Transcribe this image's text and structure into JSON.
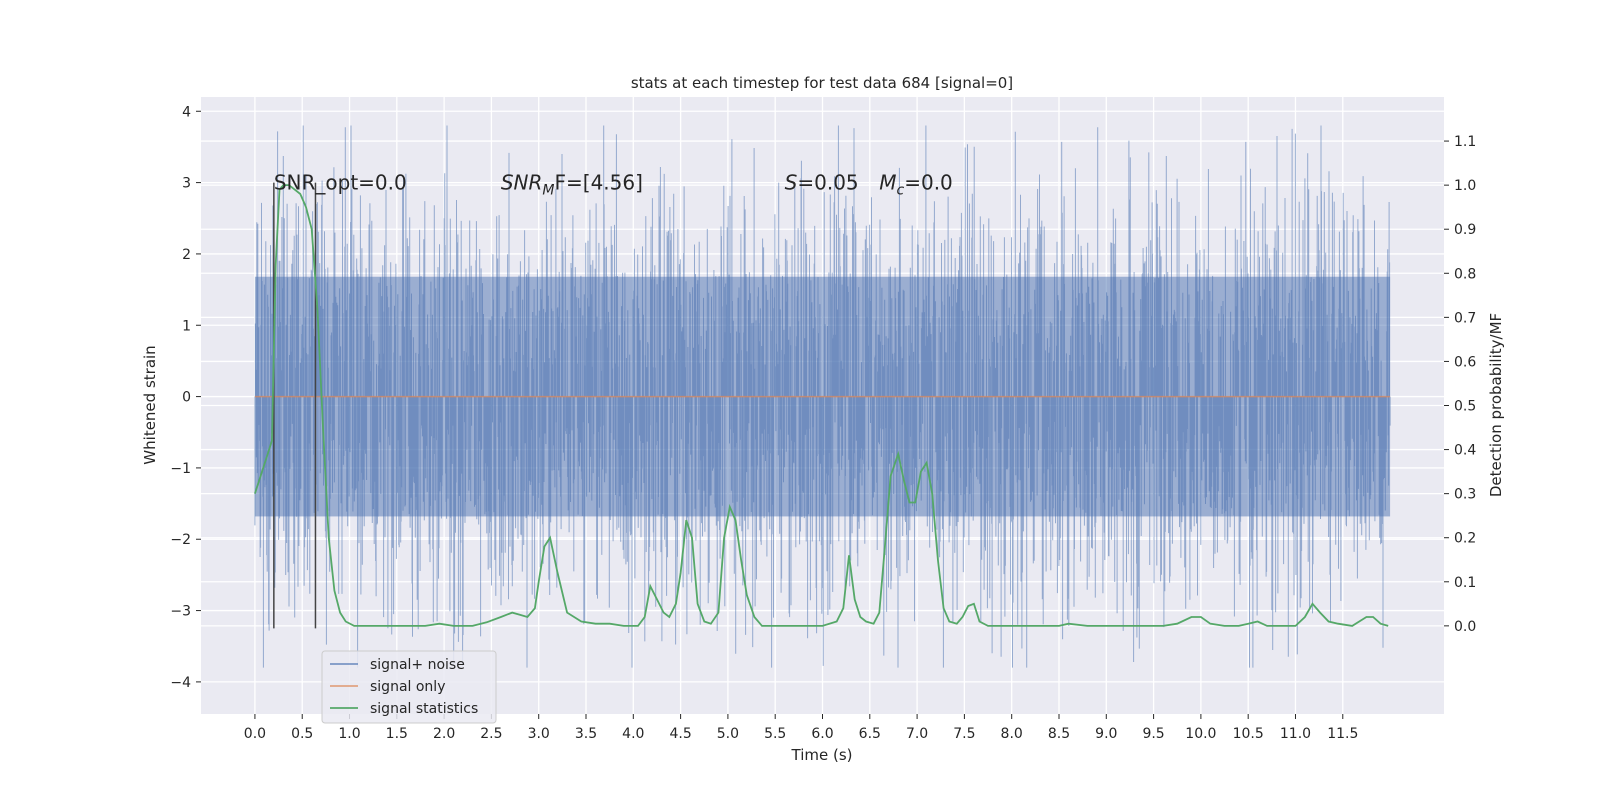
{
  "chart_data": {
    "type": "line",
    "title": "stats at each timestep for test data 684 [signal=0]",
    "xlabel": "Time (s)",
    "ylabel": "Whitened strain",
    "ylabel_right": "Detection probability/MF",
    "xlim": [
      -0.57,
      12.57
    ],
    "ylim": [
      -4.45,
      4.2
    ],
    "ylim_right": [
      -0.2,
      1.2
    ],
    "x_ticks": [
      0.0,
      0.5,
      1.0,
      1.5,
      2.0,
      2.5,
      3.0,
      3.5,
      4.0,
      4.5,
      5.0,
      5.5,
      6.0,
      6.5,
      7.0,
      7.5,
      8.0,
      8.5,
      9.0,
      9.5,
      10.0,
      10.5,
      11.0,
      11.5
    ],
    "x_tick_labels": [
      "0.0",
      "0.5",
      "1.0",
      "1.5",
      "2.0",
      "2.5",
      "3.0",
      "3.5",
      "4.0",
      "4.5",
      "5.0",
      "5.5",
      "6.0",
      "6.5",
      "7.0",
      "7.5",
      "8.0",
      "8.5",
      "9.0",
      "9.5",
      "10.0",
      "10.5",
      "11.0",
      "11.5"
    ],
    "y_ticks": [
      -4,
      -3,
      -2,
      -1,
      0,
      1,
      2,
      3,
      4
    ],
    "y_tick_labels": [
      "−4",
      "−3",
      "−2",
      "−1",
      "0",
      "1",
      "2",
      "3",
      "4"
    ],
    "y_right_ticks": [
      0.0,
      0.1,
      0.2,
      0.3,
      0.4,
      0.5,
      0.6,
      0.7,
      0.8,
      0.9,
      1.0,
      1.1
    ],
    "y_right_tick_labels": [
      "0.0",
      "0.1",
      "0.2",
      "0.3",
      "0.4",
      "0.5",
      "0.6",
      "0.7",
      "0.8",
      "0.9",
      "1.0",
      "1.1"
    ],
    "grid": true,
    "legend_position": "lower-left",
    "series": [
      {
        "name": "signal+ noise",
        "color": "#4c72b0",
        "kind": "noise-band",
        "x_range": [
          0.0,
          12.0
        ],
        "typical_amplitude": 1.5,
        "max_amplitude": 3.8
      },
      {
        "name": "signal only",
        "color": "#dd8452",
        "x": [
          0.0,
          12.0
        ],
        "y": [
          0.0,
          0.0
        ]
      },
      {
        "name": "signal statistics",
        "color": "#55a868",
        "axis": "right",
        "x": [
          0.0,
          0.06,
          0.12,
          0.18,
          0.22,
          0.26,
          0.3,
          0.36,
          0.42,
          0.48,
          0.54,
          0.6,
          0.66,
          0.72,
          0.78,
          0.84,
          0.9,
          0.96,
          1.05,
          1.2,
          1.4,
          1.6,
          1.8,
          1.95,
          2.1,
          2.3,
          2.45,
          2.6,
          2.72,
          2.8,
          2.88,
          2.96,
          3.0,
          3.06,
          3.12,
          3.2,
          3.3,
          3.45,
          3.6,
          3.75,
          3.9,
          4.05,
          4.12,
          4.18,
          4.25,
          4.32,
          4.38,
          4.45,
          4.5,
          4.56,
          4.62,
          4.68,
          4.75,
          4.82,
          4.9,
          4.96,
          5.02,
          5.08,
          5.14,
          5.2,
          5.28,
          5.36,
          5.45,
          5.6,
          5.8,
          6.0,
          6.15,
          6.22,
          6.28,
          6.34,
          6.4,
          6.46,
          6.54,
          6.6,
          6.66,
          6.72,
          6.8,
          6.86,
          6.92,
          6.98,
          7.04,
          7.1,
          7.16,
          7.22,
          7.28,
          7.34,
          7.42,
          7.48,
          7.54,
          7.6,
          7.66,
          7.75,
          7.9,
          8.1,
          8.3,
          8.5,
          8.6,
          8.8,
          9.0,
          9.2,
          9.4,
          9.6,
          9.75,
          9.9,
          10.0,
          10.1,
          10.25,
          10.4,
          10.5,
          10.6,
          10.7,
          10.85,
          11.0,
          11.1,
          11.18,
          11.26,
          11.35,
          11.45,
          11.6,
          11.75,
          11.82,
          11.9,
          11.98
        ],
        "y": [
          0.3,
          0.34,
          0.38,
          0.42,
          0.82,
          0.99,
          1.0,
          1.0,
          0.99,
          0.98,
          0.95,
          0.9,
          0.72,
          0.45,
          0.2,
          0.08,
          0.03,
          0.01,
          0.0,
          0.0,
          0.0,
          0.0,
          0.0,
          0.005,
          0.0,
          0.0,
          0.008,
          0.02,
          0.03,
          0.025,
          0.02,
          0.04,
          0.1,
          0.18,
          0.2,
          0.12,
          0.03,
          0.01,
          0.005,
          0.005,
          0.0,
          0.0,
          0.02,
          0.09,
          0.06,
          0.03,
          0.02,
          0.05,
          0.12,
          0.24,
          0.2,
          0.05,
          0.01,
          0.005,
          0.03,
          0.2,
          0.27,
          0.24,
          0.15,
          0.07,
          0.02,
          0.0,
          0.0,
          0.0,
          0.0,
          0.0,
          0.01,
          0.04,
          0.16,
          0.06,
          0.02,
          0.01,
          0.005,
          0.03,
          0.18,
          0.34,
          0.39,
          0.33,
          0.28,
          0.28,
          0.35,
          0.37,
          0.3,
          0.15,
          0.04,
          0.01,
          0.005,
          0.02,
          0.045,
          0.05,
          0.01,
          0.0,
          0.0,
          0.0,
          0.0,
          0.0,
          0.005,
          0.0,
          0.0,
          0.0,
          0.0,
          0.0,
          0.005,
          0.02,
          0.02,
          0.005,
          0.0,
          0.0,
          0.005,
          0.01,
          0.0,
          0.0,
          0.0,
          0.02,
          0.05,
          0.03,
          0.01,
          0.005,
          0.0,
          0.02,
          0.02,
          0.005,
          0.0
        ]
      }
    ],
    "vertical_lines": [
      0.2,
      0.64
    ],
    "vertical_line_range": [
      -3.25,
      3.0
    ],
    "annotations": [
      {
        "text": "SNR_opt=0.0",
        "x": 0.2,
        "y": 3.0,
        "style": "plain"
      },
      {
        "text_main": "SNR",
        "text_sub": "M",
        "text_rest": "F=[4.56]",
        "x": 2.6,
        "y": 3.0,
        "style": "italic"
      },
      {
        "text_main": "S",
        "text_rest": "=0.05",
        "x": 5.6,
        "y": 3.0,
        "style": "italic"
      },
      {
        "text_main": "M",
        "text_sub": "c",
        "text_rest": "=0.0",
        "x": 6.6,
        "y": 3.0,
        "style": "italic"
      }
    ],
    "legend": [
      "signal+ noise",
      "signal only",
      "signal statistics"
    ]
  }
}
